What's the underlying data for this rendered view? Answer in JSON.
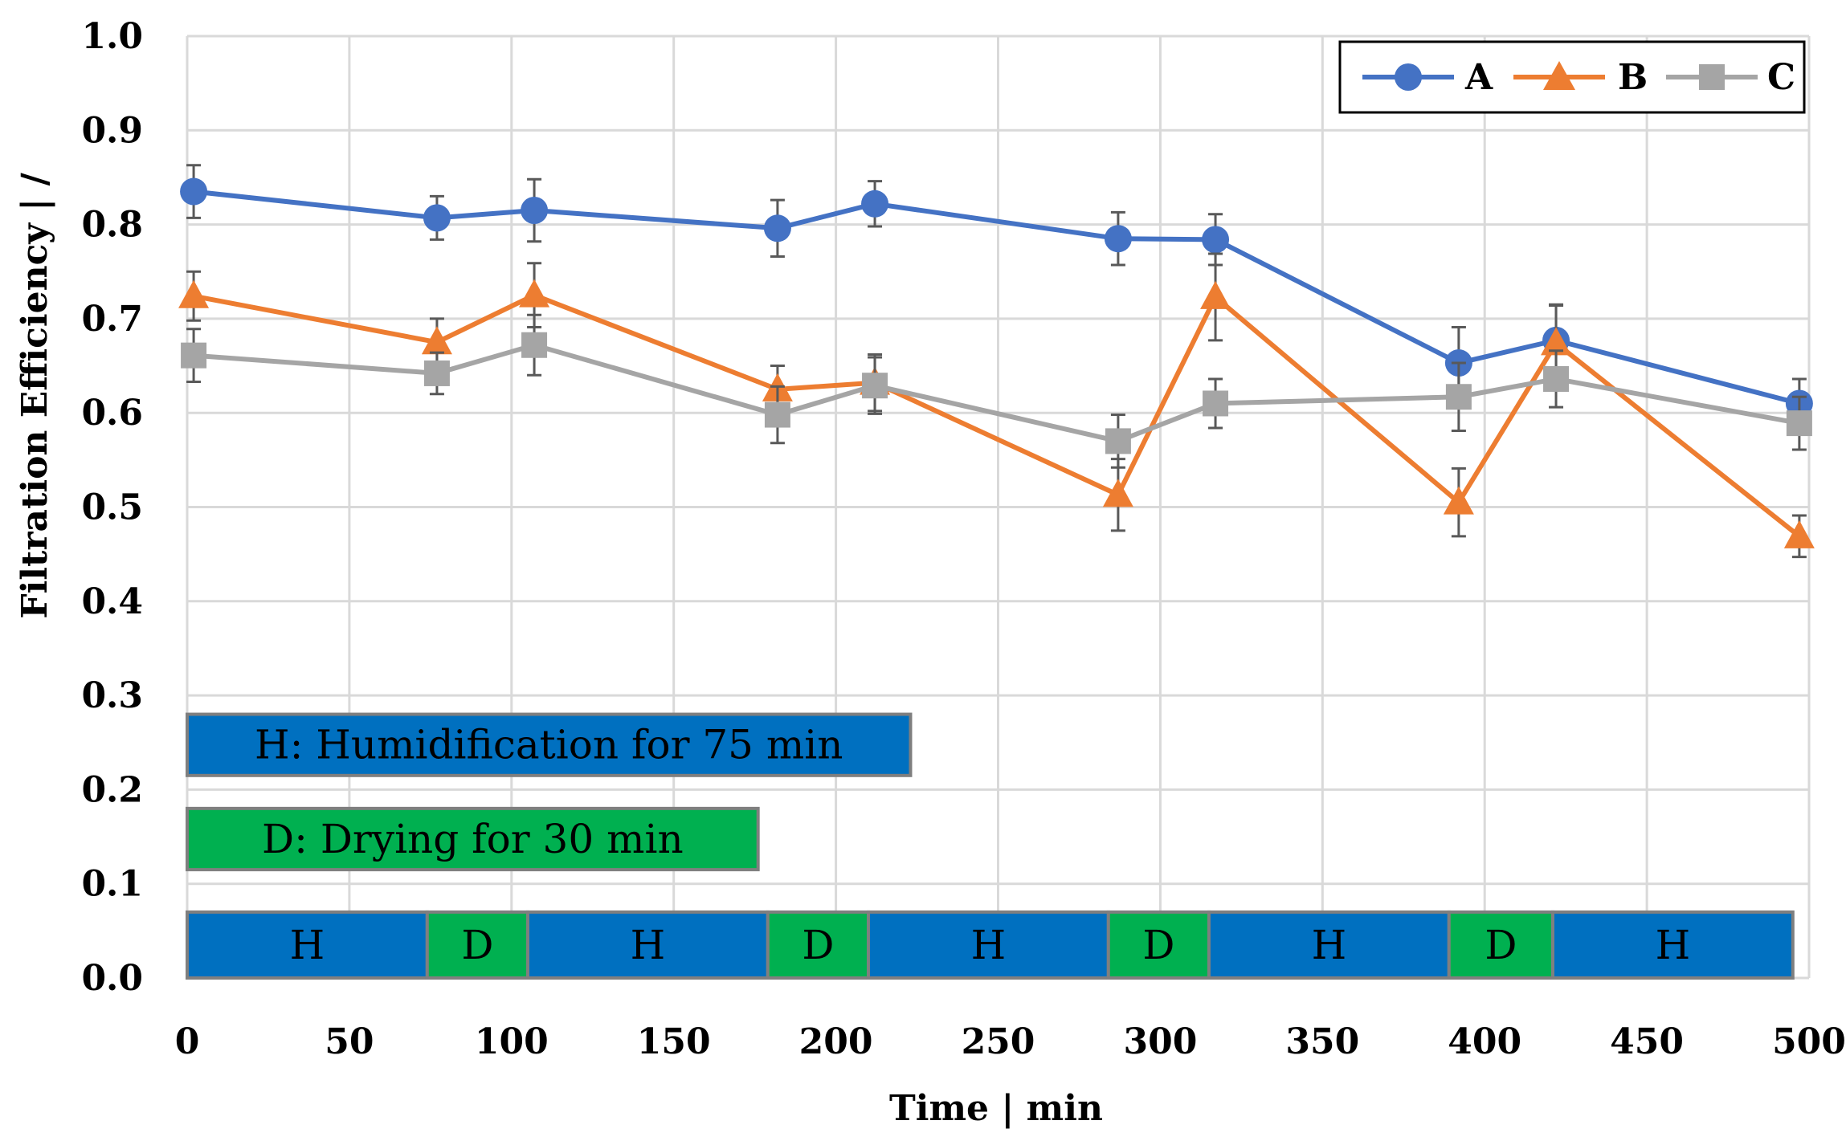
{
  "chart_data": {
    "type": "line",
    "title": "",
    "xlabel": "Time | min",
    "ylabel": "Filtration Efficiency | /",
    "xlim": [
      0,
      500
    ],
    "ylim": [
      0.0,
      1.0
    ],
    "x_ticks": [
      0,
      50,
      100,
      150,
      200,
      250,
      300,
      350,
      400,
      450,
      500
    ],
    "y_ticks": [
      "0.0",
      "0.1",
      "0.2",
      "0.3",
      "0.4",
      "0.5",
      "0.6",
      "0.7",
      "0.8",
      "0.9",
      "1.0"
    ],
    "grid": true,
    "legend_position": "top-right",
    "series": [
      {
        "name": "A",
        "color": "#4472C4",
        "marker": "circle",
        "x": [
          2,
          77,
          107,
          182,
          212,
          287,
          317,
          392,
          422,
          497
        ],
        "values": [
          0.835,
          0.807,
          0.815,
          0.796,
          0.822,
          0.785,
          0.784,
          0.653,
          0.677,
          0.61
        ],
        "errors": [
          0.028,
          0.023,
          0.033,
          0.03,
          0.024,
          0.028,
          0.027,
          0.038,
          0.038,
          0.026
        ]
      },
      {
        "name": "B",
        "color": "#ED7D31",
        "marker": "triangle",
        "x": [
          2,
          77,
          107,
          182,
          212,
          287,
          317,
          392,
          422,
          497
        ],
        "values": [
          0.724,
          0.675,
          0.725,
          0.625,
          0.632,
          0.513,
          0.723,
          0.505,
          0.674,
          0.469
        ],
        "errors": [
          0.026,
          0.025,
          0.034,
          0.025,
          0.03,
          0.038,
          0.046,
          0.036,
          0.04,
          0.022
        ]
      },
      {
        "name": "C",
        "color": "#A5A5A5",
        "marker": "square",
        "x": [
          2,
          77,
          107,
          182,
          212,
          287,
          317,
          392,
          422,
          497
        ],
        "values": [
          0.661,
          0.642,
          0.672,
          0.598,
          0.629,
          0.57,
          0.61,
          0.617,
          0.636,
          0.589
        ],
        "errors": [
          0.028,
          0.022,
          0.032,
          0.03,
          0.03,
          0.028,
          0.026,
          0.036,
          0.03,
          0.028
        ]
      }
    ],
    "annotations": [
      {
        "text": "H: Humidification for 75 min",
        "color": "#0070C0",
        "y_range": [
          0.215,
          0.28
        ],
        "x_range": [
          0,
          223
        ]
      },
      {
        "text": "D: Drying for 30 min",
        "color": "#00B050",
        "y_range": [
          0.115,
          0.18
        ],
        "x_range": [
          0,
          176
        ]
      }
    ],
    "phases": [
      {
        "label": "H",
        "start": 0,
        "end": 74,
        "color": "#0070C0"
      },
      {
        "label": "D",
        "start": 74,
        "end": 105,
        "color": "#00B050"
      },
      {
        "label": "H",
        "start": 105,
        "end": 179,
        "color": "#0070C0"
      },
      {
        "label": "D",
        "start": 179,
        "end": 210,
        "color": "#00B050"
      },
      {
        "label": "H",
        "start": 210,
        "end": 284,
        "color": "#0070C0"
      },
      {
        "label": "D",
        "start": 284,
        "end": 315,
        "color": "#00B050"
      },
      {
        "label": "H",
        "start": 315,
        "end": 389,
        "color": "#0070C0"
      },
      {
        "label": "D",
        "start": 389,
        "end": 421,
        "color": "#00B050"
      },
      {
        "label": "H",
        "start": 421,
        "end": 495,
        "color": "#0070C0"
      }
    ],
    "phase_y_range": [
      0.0,
      0.07
    ]
  }
}
